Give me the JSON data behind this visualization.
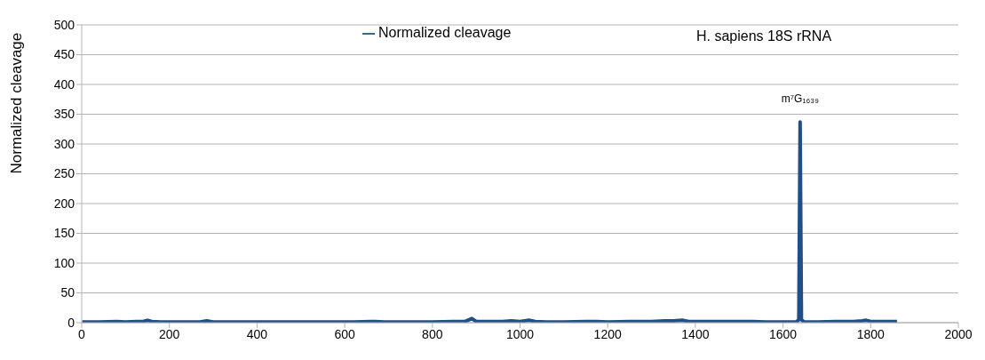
{
  "chart_data": {
    "type": "line",
    "ylabel": "Normalized cleavage",
    "legend": "top",
    "grid": "y",
    "marker": "none",
    "line_style": "solid",
    "xlim": [
      0,
      2000
    ],
    "xticks": [
      0,
      200,
      400,
      600,
      800,
      1000,
      1200,
      1400,
      1600,
      1800,
      2000
    ],
    "ylim": [
      0,
      500
    ],
    "yticks": [
      0,
      50,
      100,
      150,
      200,
      250,
      300,
      350,
      400,
      450,
      500
    ],
    "annotations": [
      "H. sapiens 18S rRNA",
      {
        "text": "m⁷G₁₆₃₉",
        "x": 1639,
        "y": 337
      }
    ],
    "series": [
      {
        "name": "Normalized cleavage",
        "color": "#1f4e89",
        "x": [
          1,
          40,
          80,
          100,
          125,
          140,
          150,
          160,
          180,
          220,
          270,
          285,
          300,
          340,
          400,
          450,
          500,
          560,
          620,
          660,
          670,
          690,
          740,
          800,
          850,
          860,
          875,
          890,
          900,
          930,
          960,
          980,
          1000,
          1020,
          1035,
          1060,
          1100,
          1150,
          1175,
          1200,
          1250,
          1280,
          1300,
          1330,
          1350,
          1370,
          1385,
          1420,
          1460,
          1490,
          1530,
          1560,
          1600,
          1630,
          1636,
          1639,
          1642,
          1648,
          1680,
          1720,
          1760,
          1780,
          1790,
          1800,
          1830,
          1860
        ],
        "values": [
          1,
          1,
          2,
          1,
          2,
          2,
          4,
          2,
          1,
          1,
          1,
          3,
          1,
          1,
          1,
          1,
          1,
          1,
          1,
          2,
          2,
          1,
          1,
          1,
          2,
          2,
          2,
          7,
          2,
          2,
          2,
          3,
          2,
          4,
          2,
          1,
          1,
          2,
          2,
          1,
          2,
          2,
          2,
          3,
          3,
          4,
          2,
          2,
          2,
          2,
          2,
          1,
          1,
          1,
          5,
          337,
          5,
          1,
          1,
          2,
          2,
          3,
          4,
          2,
          2,
          2
        ]
      }
    ]
  }
}
